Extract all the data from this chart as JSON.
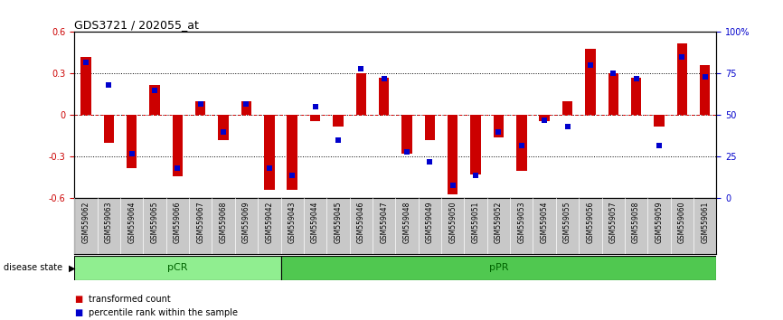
{
  "title": "GDS3721 / 202055_at",
  "samples": [
    "GSM559062",
    "GSM559063",
    "GSM559064",
    "GSM559065",
    "GSM559066",
    "GSM559067",
    "GSM559068",
    "GSM559069",
    "GSM559042",
    "GSM559043",
    "GSM559044",
    "GSM559045",
    "GSM559046",
    "GSM559047",
    "GSM559048",
    "GSM559049",
    "GSM559050",
    "GSM559051",
    "GSM559052",
    "GSM559053",
    "GSM559054",
    "GSM559055",
    "GSM559056",
    "GSM559057",
    "GSM559058",
    "GSM559059",
    "GSM559060",
    "GSM559061"
  ],
  "transformed_count": [
    0.42,
    -0.2,
    -0.38,
    0.22,
    -0.44,
    0.1,
    -0.18,
    0.1,
    -0.54,
    -0.54,
    -0.04,
    -0.08,
    0.3,
    0.27,
    -0.28,
    -0.18,
    -0.57,
    -0.43,
    -0.16,
    -0.4,
    -0.04,
    0.1,
    0.48,
    0.3,
    0.27,
    -0.08,
    0.52,
    0.36
  ],
  "percentile_rank": [
    82,
    68,
    27,
    65,
    18,
    57,
    40,
    57,
    18,
    14,
    55,
    35,
    78,
    72,
    28,
    22,
    8,
    14,
    40,
    32,
    47,
    43,
    80,
    75,
    72,
    32,
    85,
    73
  ],
  "pCR_count": 9,
  "pPR_count": 19,
  "ylim": [
    -0.6,
    0.6
  ],
  "yticks_left": [
    -0.6,
    -0.3,
    0.0,
    0.3,
    0.6
  ],
  "ytick_labels_left": [
    "-0.6",
    "-0.3",
    "0",
    "0.3",
    "0.6"
  ],
  "right_yticks_pct": [
    0,
    25,
    50,
    75,
    100
  ],
  "right_ytick_labels": [
    "0",
    "25",
    "50",
    "75",
    "100%"
  ],
  "bar_color": "#cc0000",
  "dot_color": "#0000cc",
  "pCR_color": "#90ee90",
  "pPR_color": "#50c850",
  "zero_line_color": "#dd0000",
  "tick_label_bg": "#c8c8c8",
  "legend_bar_label": "transformed count",
  "legend_dot_label": "percentile rank within the sample",
  "disease_state_label": "disease state",
  "pCR_label": "pCR",
  "pPR_label": "pPR"
}
